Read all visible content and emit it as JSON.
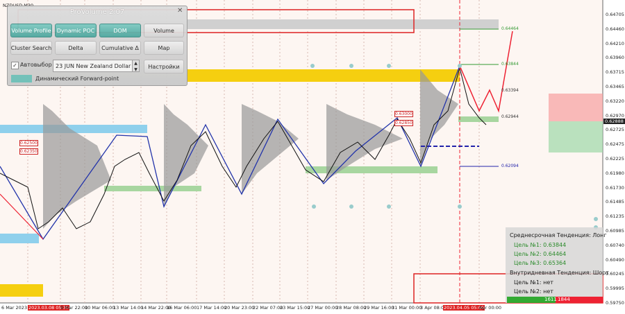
{
  "symbol": "NZDUSD,M30",
  "panel": {
    "title": "ProVolume 2.07",
    "buttons": [
      "Volume Profile",
      "Dynamic POC",
      "DOM",
      "Volume",
      "Cluster Search",
      "Delta",
      "Cumulative Δ",
      "Map"
    ],
    "auto_select": "Автовыбор",
    "instrument": "23 JUN New Zealand Dollar",
    "settings": "Настройки",
    "forward_point": "Динамический Forward-point"
  },
  "price_axis": {
    "ticks": [
      "0.64705",
      "0.64460",
      "0.64210",
      "0.63960",
      "0.63715",
      "0.63465",
      "0.63220",
      "0.62970",
      "0.62725",
      "0.62475",
      "0.62225",
      "0.61980",
      "0.61730",
      "0.61485",
      "0.61235",
      "0.60985",
      "0.60740",
      "0.60490",
      "0.60245",
      "0.59995",
      "0.59750"
    ],
    "current": "0.62888"
  },
  "time_axis": [
    "6 Mar 2023",
    "2023.03.08 05:30",
    "9 Mar 22:00",
    "10 Mar 06:00",
    "13 Mar 14:00",
    "14 Mar 22:00",
    "16 Mar 06:00",
    "17 Mar 14:00",
    "20 Mar 23:00",
    "22 Mar 07:00",
    "23 Mar 15:00",
    "27 Mar 00:00",
    "28 Mar 08:00",
    "29 Mar 16:00",
    "31 Mar 00:00",
    "3 Apr 08:00",
    "2023.04.05 05:00",
    "Apr 00:00"
  ],
  "levels": {
    "right": [
      "0.64464",
      "0.63844",
      "0.63394",
      "0.62944",
      "0.62094"
    ],
    "left": [
      "0.62500",
      "0.62350"
    ],
    "mid": [
      "0.63000",
      "0.62850"
    ]
  },
  "info": {
    "medium_term": "Среднесрочная Тенденция: Лонг",
    "medium_targets": [
      "Цель №1: 0.63844",
      "Цель №2: 0.64464",
      "Цель №3: 0.65364"
    ],
    "intraday": "Внутридневная Тенденция: Шорт",
    "intraday_targets": [
      "Цель №1: нет",
      "Цель №2: нет"
    ],
    "volumes": [
      "1611",
      "1844"
    ]
  }
}
